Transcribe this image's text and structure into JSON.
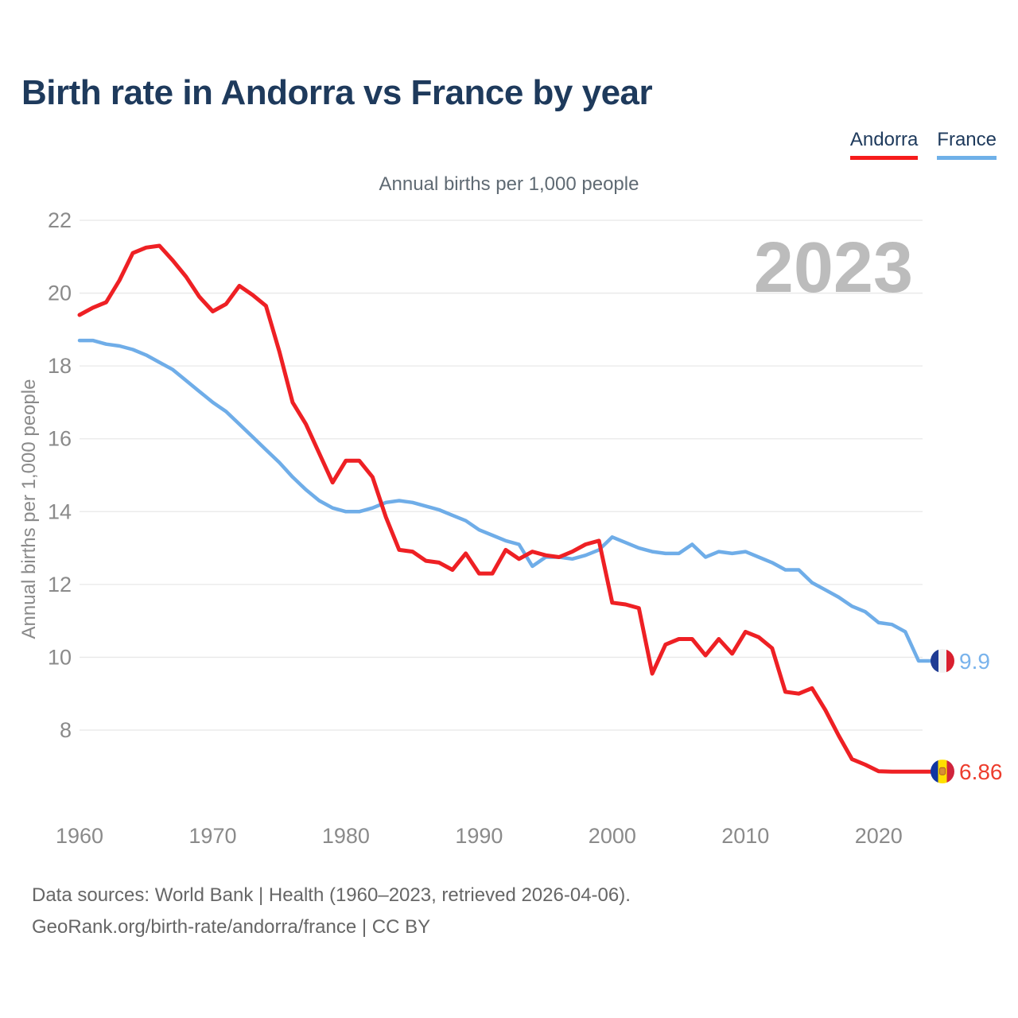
{
  "header": {
    "title": "Birth rate in Andorra vs France by year",
    "subtitle": "Annual births per 1,000 people"
  },
  "legend": [
    {
      "label": "Andorra",
      "color": "#f61b1b"
    },
    {
      "label": "France",
      "color": "#6fb0e8"
    }
  ],
  "watermark": "2023",
  "footer": {
    "line1": "Data sources: World Bank | Health (1960–2023, retrieved 2026-04-06).",
    "line2": "GeoRank.org/birth-rate/andorra/france | CC BY"
  },
  "chart_data": {
    "type": "line",
    "title": "Annual births per 1,000 people",
    "xlabel": "",
    "ylabel": "Annual births per 1,000 people",
    "grid": "horizontal",
    "legend_position": "top-right",
    "xlim": [
      1960,
      2023
    ],
    "ylim": [
      8,
      22
    ],
    "xticks": [
      1960,
      1970,
      1980,
      1990,
      2000,
      2010,
      2020
    ],
    "yticks": [
      8,
      10,
      12,
      14,
      16,
      18,
      20,
      22
    ],
    "x": [
      1960,
      1961,
      1962,
      1963,
      1964,
      1965,
      1966,
      1967,
      1968,
      1969,
      1970,
      1971,
      1972,
      1973,
      1974,
      1975,
      1976,
      1977,
      1978,
      1979,
      1980,
      1981,
      1982,
      1983,
      1984,
      1985,
      1986,
      1987,
      1988,
      1989,
      1990,
      1991,
      1992,
      1993,
      1994,
      1995,
      1996,
      1997,
      1998,
      1999,
      2000,
      2001,
      2002,
      2003,
      2004,
      2005,
      2006,
      2007,
      2008,
      2009,
      2010,
      2011,
      2012,
      2013,
      2014,
      2015,
      2016,
      2017,
      2018,
      2019,
      2020,
      2021,
      2022,
      2023
    ],
    "series": [
      {
        "name": "France",
        "color": "#6fade8",
        "flag": "france",
        "end_label": "9.9",
        "values": [
          18.7,
          18.7,
          18.6,
          18.55,
          18.45,
          18.3,
          18.1,
          17.9,
          17.6,
          17.3,
          17.0,
          16.75,
          16.4,
          16.05,
          15.7,
          15.35,
          14.95,
          14.6,
          14.3,
          14.1,
          14.0,
          14.0,
          14.1,
          14.25,
          14.3,
          14.25,
          14.15,
          14.05,
          13.9,
          13.75,
          13.5,
          13.35,
          13.2,
          13.1,
          12.5,
          12.75,
          12.75,
          12.7,
          12.8,
          12.95,
          13.3,
          13.15,
          13.0,
          12.9,
          12.85,
          12.85,
          13.1,
          12.75,
          12.9,
          12.85,
          12.9,
          12.75,
          12.6,
          12.4,
          12.4,
          12.05,
          11.85,
          11.65,
          11.4,
          11.25,
          10.95,
          10.9,
          10.7,
          9.9
        ]
      },
      {
        "name": "Andorra",
        "color": "#ee2024",
        "flag": "andorra",
        "end_label": "6.86",
        "values": [
          19.4,
          19.6,
          19.75,
          20.35,
          21.1,
          21.25,
          21.3,
          20.9,
          20.45,
          19.9,
          19.5,
          19.7,
          20.2,
          19.95,
          19.65,
          18.4,
          17.0,
          16.4,
          15.6,
          14.8,
          15.4,
          15.4,
          14.95,
          13.85,
          12.95,
          12.9,
          12.65,
          12.6,
          12.4,
          12.85,
          12.3,
          12.3,
          12.95,
          12.7,
          12.9,
          12.8,
          12.75,
          12.9,
          13.1,
          13.2,
          11.5,
          11.45,
          11.35,
          9.55,
          10.35,
          10.5,
          10.5,
          10.05,
          10.5,
          10.1,
          10.7,
          10.55,
          10.25,
          9.05,
          9.0,
          9.15,
          8.55,
          7.85,
          7.2,
          7.05,
          6.87,
          6.86,
          6.86,
          6.86
        ]
      }
    ]
  },
  "colors": {
    "title": "#1e3a5c",
    "axis_text": "#8a8a8a",
    "gridline": "#e8e8e8",
    "watermark": "#bcbcbc",
    "france_label": "#79b3ec",
    "andorra_label": "#ed3d2d"
  }
}
